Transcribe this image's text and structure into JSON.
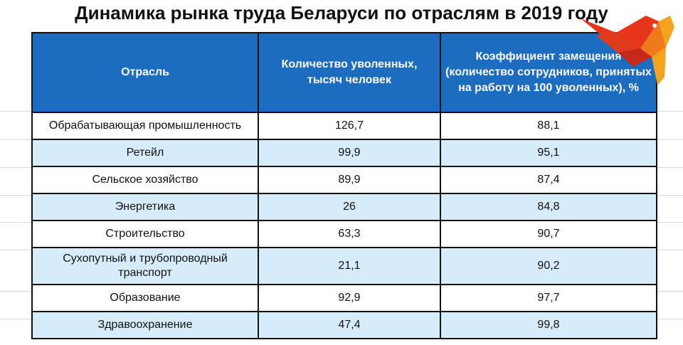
{
  "title": "Динамика рынка труда Беларуси по отраслям в 2019 году",
  "headers": {
    "industry": "Отрасль",
    "dismissed": "Количество уволенных, тысяч человек",
    "replacement": "Коэффициент замещения (количество сотрудников, принятых на работу на 100 уволенных), %"
  },
  "chart_data": {
    "type": "table",
    "title": "Динамика рынка труда Беларуси по отраслям в 2019 году",
    "columns": [
      "Отрасль",
      "Количество уволенных, тысяч человек",
      "Коэффициент замещения (количество сотрудников, принятых на работу на 100 уволенных), %"
    ],
    "rows": [
      {
        "industry": "Обрабатывающая промышленность",
        "dismissed": "126,7",
        "replacement": "88,1"
      },
      {
        "industry": "Ретейл",
        "dismissed": "99,9",
        "replacement": "95,1"
      },
      {
        "industry": "Сельское хозяйство",
        "dismissed": "89,9",
        "replacement": "87,4"
      },
      {
        "industry": "Энергетика",
        "dismissed": "26",
        "replacement": "84,8"
      },
      {
        "industry": "Строительство",
        "dismissed": "63,3",
        "replacement": "90,7"
      },
      {
        "industry": "Сухопутный и трубопроводный транспорт",
        "dismissed": "21,1",
        "replacement": "90,2"
      },
      {
        "industry": "Образование",
        "dismissed": "92,9",
        "replacement": "97,7"
      },
      {
        "industry": "Здравоохранение",
        "dismissed": "47,4",
        "replacement": "99,8"
      }
    ]
  },
  "colors": {
    "header_bg": "#1c6cc0",
    "header_text": "#ffffff",
    "row_alt_bg": "#d6ecfa",
    "border": "#111111"
  },
  "logo": {
    "icon": "bird-logo-icon"
  }
}
